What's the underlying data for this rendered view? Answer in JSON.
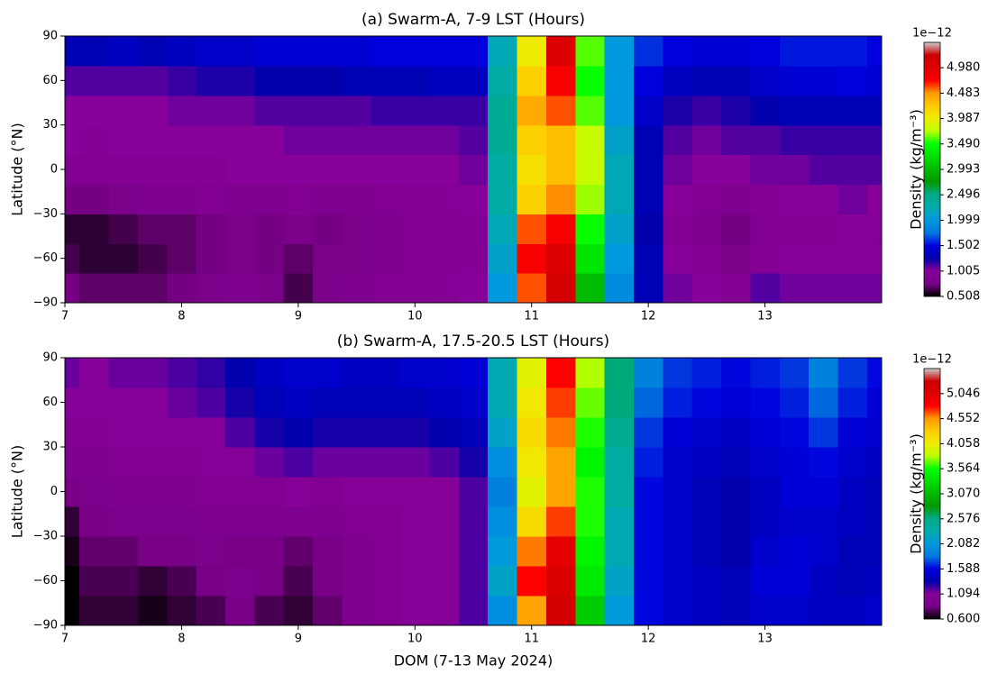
{
  "chart_data": [
    {
      "type": "contour",
      "title": "(a) Swarm-A, 7-9 LST (Hours)",
      "ylabel": "Latitude (°N)",
      "colormap": "nipy_spectral",
      "xlim": [
        7,
        14
      ],
      "ylim": [
        -90,
        90
      ],
      "xticks": [
        7,
        8,
        9,
        10,
        11,
        12,
        13
      ],
      "yticks": [
        {
          "value": -90,
          "label": "−90"
        },
        {
          "value": -60,
          "label": "−60"
        },
        {
          "value": -30,
          "label": "−30"
        },
        0,
        30,
        60,
        90
      ],
      "x": [
        7.0,
        7.25,
        7.5,
        7.75,
        8.0,
        8.25,
        8.5,
        8.75,
        9.0,
        9.25,
        9.5,
        9.75,
        10.0,
        10.25,
        10.5,
        10.75,
        11.0,
        11.25,
        11.5,
        11.75,
        12.0,
        12.25,
        12.5,
        12.75,
        13.0,
        13.25,
        13.5,
        13.75,
        14.0
      ],
      "y": [
        -80,
        -60,
        -40,
        -20,
        0,
        20,
        40,
        60,
        80
      ],
      "z": [
        [
          0.75,
          0.7,
          0.7,
          0.7,
          0.75,
          0.8,
          0.85,
          0.8,
          0.65,
          0.8,
          0.85,
          0.9,
          0.9,
          0.95,
          1.0,
          2.0,
          4.6,
          5.1,
          3.0,
          1.9,
          1.3,
          1.05,
          1.0,
          0.95,
          1.1,
          1.05,
          1.05,
          1.05,
          1.05
        ],
        [
          0.65,
          0.6,
          0.6,
          0.65,
          0.7,
          0.75,
          0.8,
          0.75,
          0.7,
          0.8,
          0.8,
          0.85,
          0.9,
          0.9,
          0.95,
          2.1,
          4.8,
          5.0,
          3.3,
          2.0,
          1.3,
          1.0,
          0.9,
          0.8,
          0.95,
          1.0,
          1.0,
          1.0,
          1.0
        ],
        [
          0.6,
          0.6,
          0.65,
          0.7,
          0.7,
          0.75,
          0.8,
          0.75,
          0.8,
          0.75,
          0.8,
          0.85,
          0.9,
          0.9,
          0.95,
          2.2,
          4.6,
          4.8,
          3.5,
          2.1,
          1.25,
          0.95,
          0.85,
          0.75,
          0.9,
          0.95,
          0.95,
          1.0,
          0.95
        ],
        [
          0.75,
          0.75,
          0.8,
          0.85,
          0.85,
          0.9,
          0.85,
          0.85,
          0.9,
          0.85,
          0.85,
          0.9,
          0.95,
          0.95,
          1.0,
          2.3,
          4.2,
          4.5,
          3.7,
          2.2,
          1.3,
          1.0,
          0.9,
          0.85,
          0.95,
          1.0,
          1.0,
          1.05,
          1.0
        ],
        [
          0.9,
          0.9,
          0.95,
          0.95,
          0.95,
          0.95,
          1.0,
          1.0,
          1.0,
          1.0,
          1.0,
          1.0,
          1.0,
          1.0,
          1.05,
          2.3,
          4.1,
          4.3,
          3.8,
          2.2,
          1.3,
          1.05,
          1.0,
          1.0,
          1.05,
          1.05,
          1.1,
          1.1,
          1.1
        ],
        [
          1.0,
          0.95,
          1.0,
          1.0,
          1.0,
          1.0,
          1.0,
          1.0,
          1.05,
          1.05,
          1.05,
          1.05,
          1.05,
          1.05,
          1.1,
          2.4,
          4.2,
          4.3,
          3.8,
          2.1,
          1.3,
          1.1,
          1.05,
          1.1,
          1.1,
          1.15,
          1.15,
          1.15,
          1.15
        ],
        [
          1.0,
          1.0,
          1.0,
          1.0,
          1.05,
          1.05,
          1.05,
          1.1,
          1.1,
          1.1,
          1.1,
          1.15,
          1.15,
          1.15,
          1.15,
          2.4,
          4.4,
          4.6,
          3.6,
          2.0,
          1.4,
          1.2,
          1.15,
          1.2,
          1.25,
          1.3,
          1.3,
          1.3,
          1.3
        ],
        [
          1.1,
          1.1,
          1.1,
          1.1,
          1.15,
          1.2,
          1.2,
          1.25,
          1.25,
          1.25,
          1.3,
          1.3,
          1.3,
          1.35,
          1.35,
          2.3,
          4.2,
          4.8,
          3.5,
          2.0,
          1.5,
          1.35,
          1.3,
          1.3,
          1.4,
          1.45,
          1.45,
          1.5,
          1.45
        ],
        [
          1.3,
          1.3,
          1.35,
          1.3,
          1.35,
          1.4,
          1.4,
          1.45,
          1.45,
          1.45,
          1.45,
          1.5,
          1.5,
          1.5,
          1.5,
          2.2,
          4.0,
          5.0,
          3.6,
          2.0,
          1.6,
          1.5,
          1.45,
          1.45,
          1.5,
          1.55,
          1.55,
          1.55,
          1.5
        ]
      ],
      "colorbar": {
        "label": "Density (kg/m⁻³)",
        "offset": "1e−12",
        "clim": [
          0.508,
          5.477
        ],
        "ticks": [
          0.508,
          1.005,
          1.502,
          1.999,
          2.496,
          2.993,
          {
            "value": 3.49,
            "label": "3.490"
          },
          3.987,
          4.483,
          {
            "value": 4.98,
            "label": "4.980"
          }
        ]
      }
    },
    {
      "type": "contour",
      "title": "(b) Swarm-A, 17.5-20.5 LST (Hours)",
      "xlabel": "DOM (7-13 May 2024)",
      "ylabel": "Latitude (°N)",
      "colormap": "nipy_spectral",
      "xlim": [
        7,
        14
      ],
      "ylim": [
        -90,
        90
      ],
      "xticks": [
        7,
        8,
        9,
        10,
        11,
        12,
        13
      ],
      "yticks": [
        {
          "value": -90,
          "label": "−90"
        },
        {
          "value": -60,
          "label": "−60"
        },
        {
          "value": -30,
          "label": "−30"
        },
        0,
        30,
        60,
        90
      ],
      "x": [
        7.0,
        7.25,
        7.5,
        7.75,
        8.0,
        8.25,
        8.5,
        8.75,
        9.0,
        9.25,
        9.5,
        9.75,
        10.0,
        10.25,
        10.5,
        10.75,
        11.0,
        11.25,
        11.5,
        11.75,
        12.0,
        12.25,
        12.5,
        12.75,
        13.0,
        13.25,
        13.5,
        13.75,
        14.0
      ],
      "y": [
        -80,
        -60,
        -40,
        -20,
        0,
        20,
        40,
        60,
        80
      ],
      "z": [
        [
          0.6,
          0.7,
          0.7,
          0.65,
          0.7,
          0.75,
          0.85,
          0.75,
          0.7,
          0.8,
          0.95,
          1.0,
          1.05,
          1.1,
          1.2,
          2.0,
          4.5,
          5.2,
          3.2,
          2.1,
          1.6,
          1.5,
          1.45,
          1.4,
          1.5,
          1.5,
          1.45,
          1.45,
          1.5
        ],
        [
          0.55,
          0.75,
          0.75,
          0.7,
          0.75,
          0.85,
          0.9,
          0.85,
          0.75,
          0.85,
          0.95,
          1.0,
          1.05,
          1.1,
          1.2,
          2.2,
          4.8,
          5.1,
          3.4,
          2.2,
          1.6,
          1.5,
          1.45,
          1.4,
          1.55,
          1.55,
          1.45,
          1.4,
          1.45
        ],
        [
          0.65,
          0.8,
          0.8,
          0.85,
          0.85,
          0.9,
          0.85,
          0.85,
          0.8,
          0.85,
          0.95,
          1.0,
          1.05,
          1.1,
          1.2,
          2.1,
          4.6,
          5.0,
          3.5,
          2.3,
          1.6,
          1.5,
          1.4,
          1.35,
          1.5,
          1.55,
          1.5,
          1.4,
          1.4
        ],
        [
          0.7,
          0.85,
          0.9,
          0.9,
          0.9,
          0.95,
          0.95,
          0.95,
          0.95,
          0.95,
          1.0,
          1.0,
          1.05,
          1.1,
          1.2,
          2.0,
          4.2,
          4.7,
          3.6,
          2.3,
          1.6,
          1.5,
          1.4,
          1.35,
          1.45,
          1.5,
          1.5,
          1.45,
          1.4
        ],
        [
          0.85,
          0.9,
          0.95,
          0.95,
          0.95,
          1.0,
          1.0,
          1.0,
          1.05,
          1.0,
          1.05,
          1.05,
          1.05,
          1.1,
          1.2,
          1.9,
          4.0,
          4.5,
          3.6,
          2.4,
          1.6,
          1.5,
          1.4,
          1.35,
          1.45,
          1.55,
          1.55,
          1.45,
          1.4
        ],
        [
          0.95,
          0.95,
          1.0,
          1.0,
          1.0,
          1.05,
          1.1,
          1.15,
          1.2,
          1.15,
          1.15,
          1.15,
          1.15,
          1.2,
          1.3,
          2.0,
          4.1,
          4.5,
          3.5,
          2.4,
          1.65,
          1.5,
          1.45,
          1.4,
          1.5,
          1.55,
          1.6,
          1.5,
          1.45
        ],
        [
          1.0,
          1.0,
          1.05,
          1.05,
          1.1,
          1.1,
          1.2,
          1.3,
          1.35,
          1.3,
          1.3,
          1.3,
          1.3,
          1.35,
          1.4,
          2.2,
          4.2,
          4.6,
          3.6,
          2.5,
          1.7,
          1.55,
          1.5,
          1.45,
          1.55,
          1.6,
          1.7,
          1.55,
          1.5
        ],
        [
          1.05,
          1.05,
          1.1,
          1.1,
          1.15,
          1.2,
          1.3,
          1.4,
          1.45,
          1.4,
          1.4,
          1.4,
          1.4,
          1.45,
          1.5,
          2.3,
          4.1,
          4.7,
          3.7,
          2.6,
          1.8,
          1.65,
          1.6,
          1.55,
          1.6,
          1.65,
          1.8,
          1.65,
          1.55
        ],
        [
          1.15,
          1.1,
          1.15,
          1.15,
          1.2,
          1.25,
          1.35,
          1.45,
          1.5,
          1.5,
          1.45,
          1.45,
          1.5,
          1.5,
          1.55,
          2.3,
          4.0,
          4.8,
          3.8,
          2.6,
          1.9,
          1.7,
          1.65,
          1.6,
          1.65,
          1.7,
          1.9,
          1.7,
          1.6
        ]
      ],
      "colorbar": {
        "label": "Density (kg/m⁻³)",
        "offset": "1e−12",
        "clim": [
          0.6,
          5.54
        ],
        "ticks": [
          {
            "value": 0.6,
            "label": "0.600"
          },
          1.094,
          1.588,
          2.082,
          2.576,
          {
            "value": 3.07,
            "label": "3.070"
          },
          3.564,
          4.058,
          4.552,
          5.046
        ]
      }
    }
  ]
}
